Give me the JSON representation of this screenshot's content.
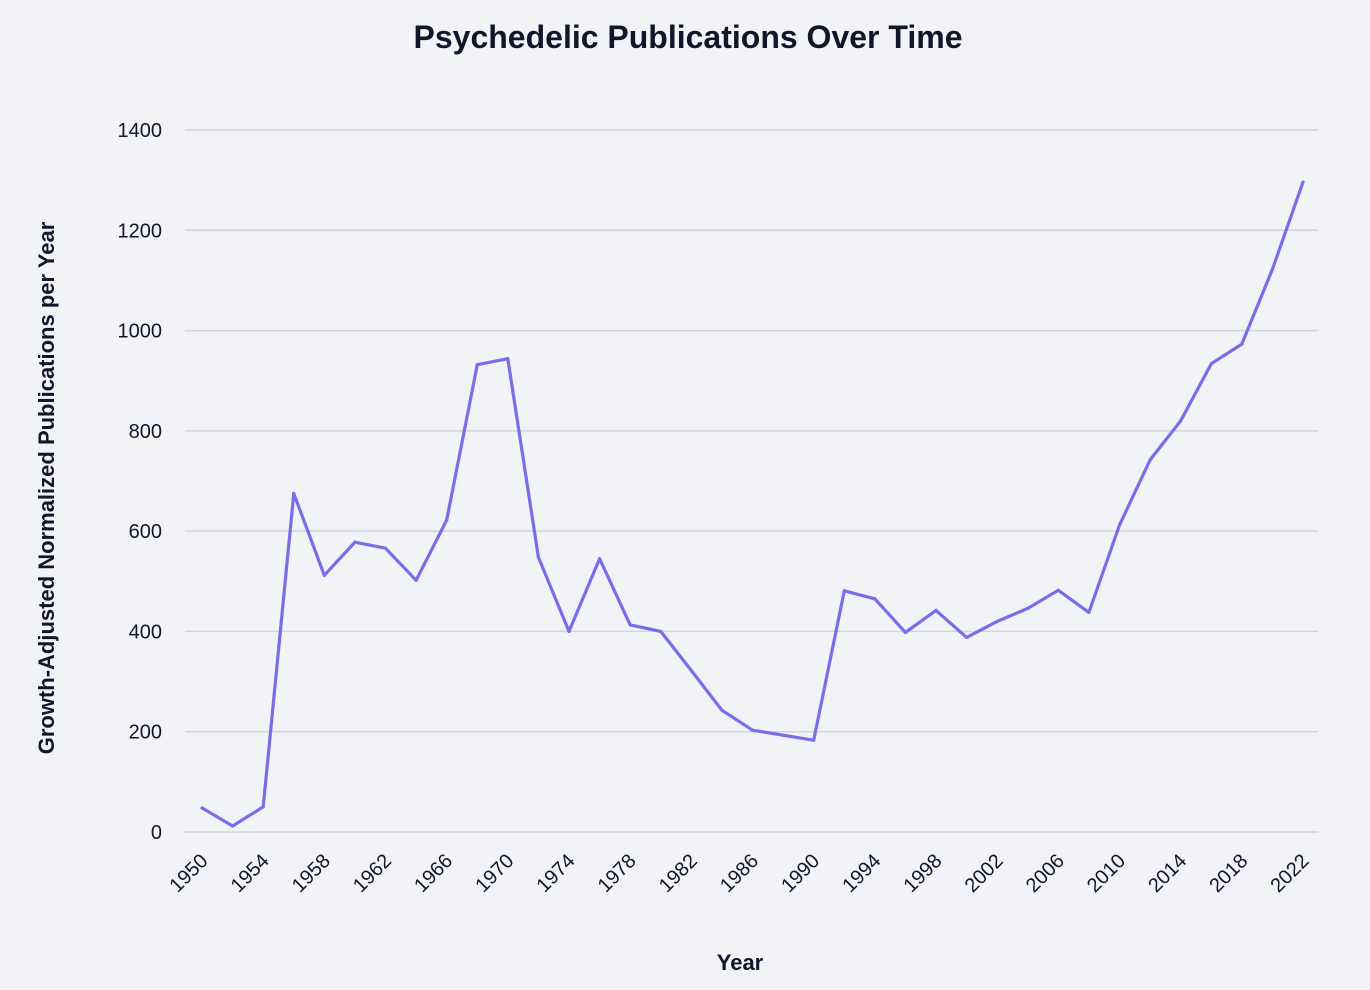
{
  "chart_data": {
    "type": "line",
    "title": "Psychedelic Publications Over Time",
    "xlabel": "Year",
    "ylabel": "Growth-Adjusted Normalized Publications per Year",
    "ylim": [
      0,
      1400
    ],
    "xlim": [
      1950,
      2022
    ],
    "yticks": [
      0,
      200,
      400,
      600,
      800,
      1000,
      1200,
      1400
    ],
    "xticks": [
      1950,
      1954,
      1958,
      1962,
      1966,
      1970,
      1974,
      1978,
      1982,
      1986,
      1990,
      1994,
      1998,
      2002,
      2006,
      2010,
      2014,
      2018,
      2022
    ],
    "grid": "horizontal",
    "line_color": "#7b6cea",
    "series": [
      {
        "x": [
          1950,
          1952,
          1954,
          1956,
          1958,
          1960,
          1962,
          1964,
          1966,
          1968,
          1970,
          1972,
          1974,
          1976,
          1978,
          1980,
          1982,
          1984,
          1986,
          1988,
          1990,
          1992,
          1994,
          1996,
          1998,
          2000,
          2002,
          2004,
          2006,
          2008,
          2010,
          2012,
          2014,
          2016,
          2018,
          2020,
          2022
        ],
        "values": [
          48,
          12,
          50,
          675,
          512,
          578,
          566,
          502,
          622,
          932,
          944,
          548,
          400,
          545,
          413,
          400,
          322,
          243,
          203,
          193,
          183,
          481,
          465,
          398,
          442,
          388,
          420,
          446,
          482,
          438,
          612,
          742,
          820,
          934,
          973,
          1122,
          1296
        ]
      }
    ]
  }
}
